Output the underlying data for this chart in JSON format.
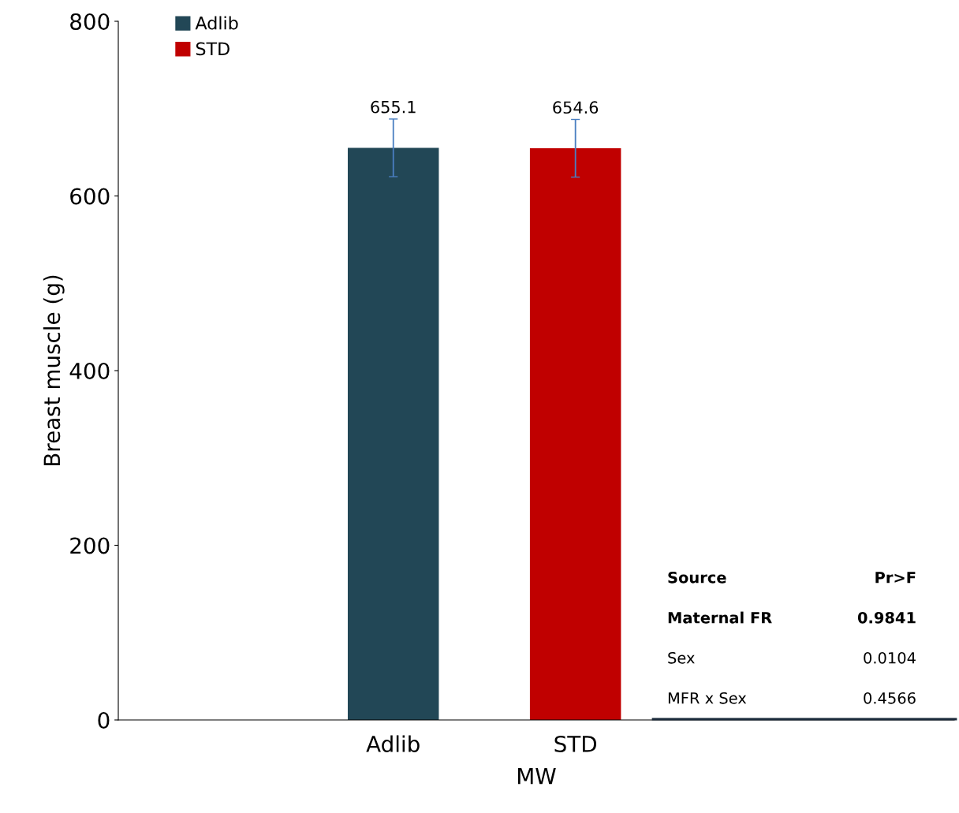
{
  "chart_data": {
    "type": "bar",
    "xlabel": "MW",
    "ylabel": "Breast muscle (g)",
    "categories": [
      "Adlib",
      "STD"
    ],
    "series": [
      {
        "name": "Adlib",
        "color": "#224756",
        "values": [
          655.1,
          null
        ],
        "errors": [
          33,
          null
        ]
      },
      {
        "name": "STD",
        "color": "#c00000",
        "values": [
          null,
          654.6
        ],
        "errors": [
          null,
          33
        ]
      }
    ],
    "ylim": [
      0,
      800
    ],
    "yticks": [
      0,
      200,
      400,
      600,
      800
    ],
    "grid": false,
    "legend": "top left",
    "data_labels": true,
    "annotations": [
      "Source",
      "Pr>F",
      "Maternal FR",
      "0.9841",
      "Sex",
      "0.0104",
      "MFR x Sex",
      "0.4566"
    ]
  }
}
